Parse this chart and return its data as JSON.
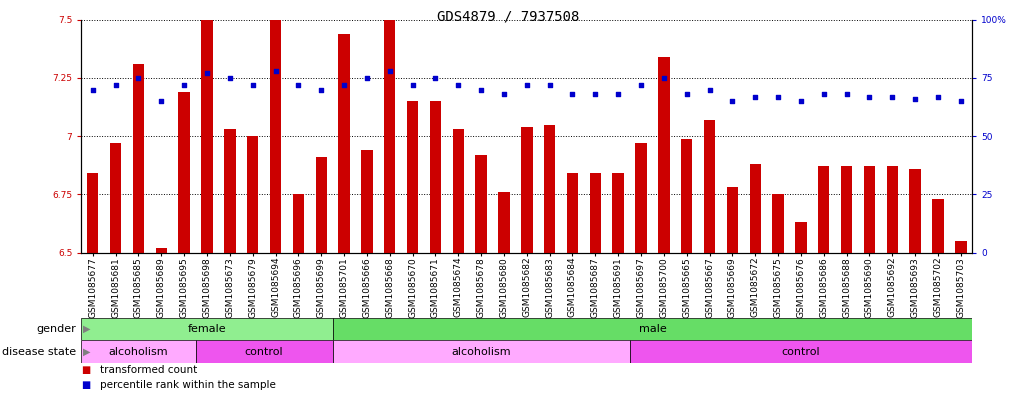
{
  "title": "GDS4879 / 7937508",
  "samples": [
    "GSM1085677",
    "GSM1085681",
    "GSM1085685",
    "GSM1085689",
    "GSM1085695",
    "GSM1085698",
    "GSM1085673",
    "GSM1085679",
    "GSM1085694",
    "GSM1085696",
    "GSM1085699",
    "GSM1085701",
    "GSM1085666",
    "GSM1085668",
    "GSM1085670",
    "GSM1085671",
    "GSM1085674",
    "GSM1085678",
    "GSM1085680",
    "GSM1085682",
    "GSM1085683",
    "GSM1085684",
    "GSM1085687",
    "GSM1085691",
    "GSM1085697",
    "GSM1085700",
    "GSM1085665",
    "GSM1085667",
    "GSM1085669",
    "GSM1085672",
    "GSM1085675",
    "GSM1085676",
    "GSM1085686",
    "GSM1085688",
    "GSM1085690",
    "GSM1085692",
    "GSM1085693",
    "GSM1085702",
    "GSM1085703"
  ],
  "bar_values": [
    6.84,
    6.97,
    7.31,
    6.52,
    7.19,
    7.5,
    7.03,
    7.0,
    7.5,
    6.75,
    6.91,
    7.44,
    6.94,
    7.5,
    7.15,
    7.15,
    7.03,
    6.92,
    6.76,
    7.04,
    7.05,
    6.84,
    6.84,
    6.84,
    6.97,
    7.34,
    6.99,
    7.07,
    6.78,
    6.88,
    6.75,
    6.63,
    6.87,
    6.87,
    6.87,
    6.87,
    6.86,
    6.73,
    6.55
  ],
  "percentile_values": [
    70,
    72,
    75,
    65,
    72,
    77,
    75,
    72,
    78,
    72,
    70,
    72,
    75,
    78,
    72,
    75,
    72,
    70,
    68,
    72,
    72,
    68,
    68,
    68,
    72,
    75,
    68,
    70,
    65,
    67,
    67,
    65,
    68,
    68,
    67,
    67,
    66,
    67,
    65
  ],
  "gender_regions": [
    {
      "label": "female",
      "start": 0,
      "end": 11,
      "color": "#90EE90"
    },
    {
      "label": "male",
      "start": 11,
      "end": 38,
      "color": "#90EE90"
    }
  ],
  "disease_regions": [
    {
      "label": "alcoholism",
      "start": 0,
      "end": 5,
      "color": "#FF80FF"
    },
    {
      "label": "control",
      "start": 5,
      "end": 11,
      "color": "#DD44DD"
    },
    {
      "label": "alcoholism",
      "start": 11,
      "end": 24,
      "color": "#FF80FF"
    },
    {
      "label": "control",
      "start": 24,
      "end": 38,
      "color": "#DD44DD"
    }
  ],
  "ylim_left": [
    6.5,
    7.5
  ],
  "ylim_right": [
    0,
    100
  ],
  "bar_color": "#CC0000",
  "dot_color": "#0000CC",
  "bar_width": 0.5,
  "title_fontsize": 10,
  "tick_fontsize": 6.5,
  "alc_color": "#FFAAFF",
  "ctrl_color": "#EE55EE",
  "female_color": "#90EE90",
  "male_color": "#66DD66"
}
